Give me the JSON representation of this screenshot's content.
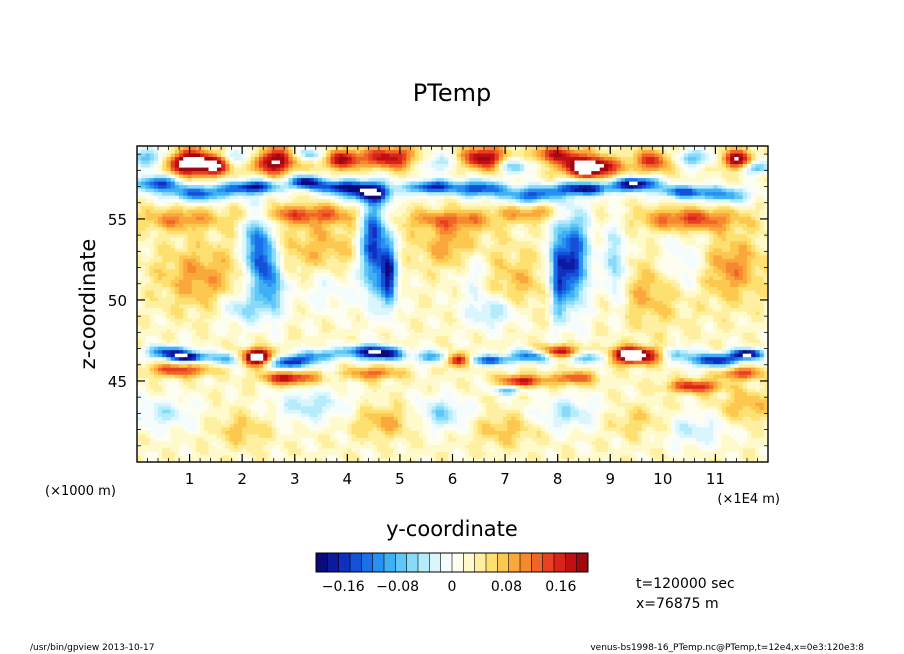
{
  "chart_data": {
    "type": "heatmap",
    "title": "PTemp",
    "xlabel": "y-coordinate",
    "ylabel": "z-coordinate",
    "x_unit_note": "(×1E4 m)",
    "y_unit_note": "(×1000 m)",
    "xlim": [
      0,
      12
    ],
    "ylim": [
      40,
      59.5
    ],
    "x_ticks": [
      1,
      2,
      3,
      4,
      5,
      6,
      7,
      8,
      9,
      10,
      11
    ],
    "y_ticks": [
      45,
      50,
      55
    ],
    "colorbar": {
      "min": -0.2,
      "max": 0.2,
      "tick_values": [
        -0.16,
        -0.08,
        0,
        0.08,
        0.16
      ],
      "tick_labels": [
        "−0.16",
        "−0.08",
        "0",
        "0.08",
        "0.16"
      ],
      "colors": [
        "#0a0a7a",
        "#0c1aa0",
        "#1030c0",
        "#1450d8",
        "#1a70e8",
        "#2890f0",
        "#40b0f4",
        "#60c8f8",
        "#88daf8",
        "#b4ecfc",
        "#daf6fc",
        "#f4fcfe",
        "#fefef0",
        "#fefacc",
        "#fef0a0",
        "#fee070",
        "#fcc850",
        "#faa83c",
        "#f6882e",
        "#f06428",
        "#e84020",
        "#d8241a",
        "#c01014",
        "#a00810"
      ]
    },
    "bands": [
      {
        "z_range": [
          57.5,
          59.5
        ],
        "pattern": "mixed strong warm/cool cells with saturated (white) patches"
      },
      {
        "z_range": [
          55.5,
          57.5
        ],
        "pattern": "dominant negative (blue) layer"
      },
      {
        "z_range": [
          47.5,
          55.5
        ],
        "pattern": "weak positive (yellow) with descending negative plumes near y=2.3, 4.6, 8.3"
      },
      {
        "z_range": [
          45.5,
          47.5
        ],
        "pattern": "strong negative/positive layer with saturated patches"
      },
      {
        "z_range": [
          40,
          45.5
        ],
        "pattern": "weak mixed perturbations"
      }
    ],
    "annotations": {
      "time": "t=120000 sec",
      "position": "x=76875 m",
      "footer_left": "/usr/bin/gpview   2013-10-17",
      "footer_right": "venus-bs1998-16_PTemp.nc@PTemp,t=12e4,x=0e3:120e3:8"
    }
  }
}
